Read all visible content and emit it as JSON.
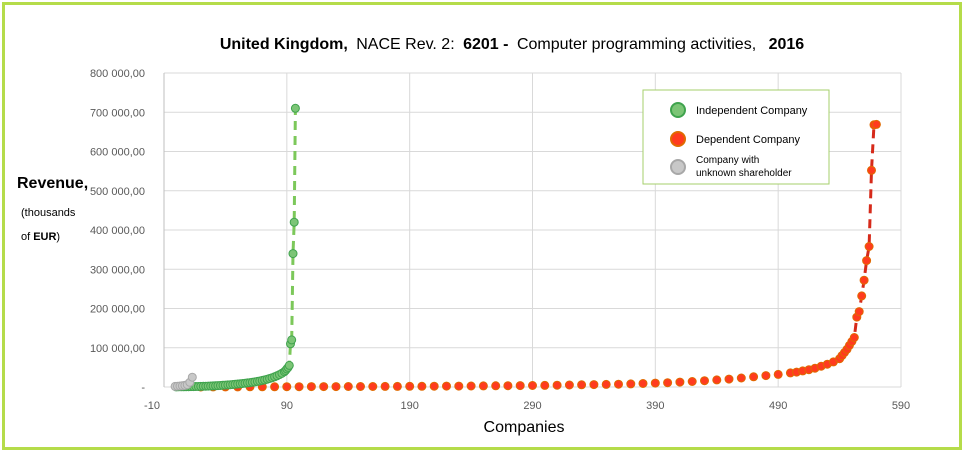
{
  "colors": {
    "independent_fill": "#7cc576",
    "independent_stroke": "#3fa34d",
    "independent_line": "#7cc85a",
    "dependent_fill": "#ff3b1f",
    "dependent_stroke": "#e06a00",
    "dependent_line": "#d62a1a",
    "unknown_fill": "#c8c8c8",
    "unknown_stroke": "#a8a8a8",
    "frame": "#b5dc4a",
    "grid": "#d9d9d9"
  },
  "chart_data": {
    "type": "scatter",
    "title": {
      "country": "United Kingdom,",
      "nace_prefix": "NACE Rev. 2:",
      "code": "6201 -",
      "activity": "Computer programming activities,",
      "year": "2016"
    },
    "xlabel": "Companies",
    "ylabel": "Revenue,",
    "ylabel_sub_1": "(thousands",
    "ylabel_sub_2_prefix": "of",
    "ylabel_sub_2_bold": "EUR",
    "ylabel_sub_2_suffix": ")",
    "xlim": [
      -10,
      590
    ],
    "ylim": [
      0,
      800000
    ],
    "x_ticks": [
      -10,
      90,
      190,
      290,
      390,
      490,
      590
    ],
    "x_tick_labels": [
      "-10",
      "90",
      "190",
      "290",
      "390",
      "490",
      "590"
    ],
    "y_ticks": [
      0,
      100000,
      200000,
      300000,
      400000,
      500000,
      600000,
      700000,
      800000
    ],
    "y_tick_labels": [
      "-",
      "100 000,00",
      "200 000,00",
      "300 000,00",
      "400 000,00",
      "500 000,00",
      "600 000,00",
      "700 000,00",
      "800 000,00"
    ],
    "legend": [
      "Independent Company",
      "Dependent Company",
      "Company with unknown shareholder"
    ],
    "legend_position": "top-right",
    "series": [
      {
        "name": "Independent Company",
        "x": [
          0,
          2,
          4,
          6,
          8,
          10,
          12,
          14,
          16,
          18,
          20,
          22,
          24,
          26,
          28,
          30,
          32,
          34,
          36,
          38,
          40,
          42,
          44,
          46,
          48,
          50,
          52,
          54,
          56,
          58,
          60,
          62,
          64,
          66,
          68,
          70,
          72,
          74,
          76,
          78,
          80,
          82,
          84,
          86,
          88,
          89,
          90,
          91,
          92,
          93,
          94,
          95,
          96,
          97
        ],
        "values": [
          300,
          400,
          500,
          600,
          700,
          800,
          900,
          1000,
          1200,
          1400,
          1600,
          1800,
          2000,
          2200,
          2500,
          2800,
          3100,
          3500,
          3900,
          4300,
          4800,
          5300,
          5800,
          6400,
          7000,
          7600,
          8200,
          8900,
          9600,
          10400,
          11200,
          12100,
          13100,
          14200,
          15400,
          16700,
          18200,
          19800,
          21600,
          23700,
          26000,
          28600,
          31500,
          35000,
          39000,
          42000,
          46000,
          50000,
          55000,
          110000,
          120000,
          340000,
          420000,
          710000
        ]
      },
      {
        "name": "Dependent Company",
        "x": [
          20,
          30,
          40,
          50,
          60,
          70,
          80,
          90,
          100,
          110,
          120,
          130,
          140,
          150,
          160,
          170,
          180,
          190,
          200,
          210,
          220,
          230,
          240,
          250,
          260,
          270,
          280,
          290,
          300,
          310,
          320,
          330,
          340,
          350,
          360,
          370,
          380,
          390,
          400,
          410,
          420,
          430,
          440,
          450,
          460,
          470,
          480,
          490,
          500,
          505,
          510,
          515,
          520,
          525,
          530,
          535,
          540,
          542,
          544,
          546,
          548,
          550,
          552,
          554,
          556,
          558,
          560,
          562,
          564,
          566,
          568,
          570
        ],
        "values": [
          100,
          150,
          200,
          300,
          400,
          500,
          600,
          700,
          800,
          900,
          1000,
          1100,
          1200,
          1300,
          1400,
          1500,
          1600,
          1700,
          1800,
          2000,
          2200,
          2400,
          2600,
          2800,
          3000,
          3300,
          3600,
          3900,
          4200,
          4600,
          5000,
          5500,
          6000,
          6600,
          7200,
          8000,
          9000,
          10000,
          11000,
          12500,
          14000,
          16000,
          18000,
          20000,
          23000,
          26000,
          29000,
          32000,
          36000,
          38000,
          41000,
          44000,
          48000,
          53000,
          58000,
          64000,
          72000,
          80000,
          88000,
          96000,
          106000,
          116000,
          126000,
          178000,
          192000,
          232000,
          272000,
          322000,
          358000,
          552000,
          668000,
          669000
        ]
      },
      {
        "name": "Company with unknown shareholder",
        "x": [
          -1,
          1,
          3,
          5,
          7,
          9,
          11,
          13
        ],
        "values": [
          1500,
          2000,
          2500,
          3000,
          4000,
          6000,
          12000,
          25000
        ]
      }
    ]
  }
}
